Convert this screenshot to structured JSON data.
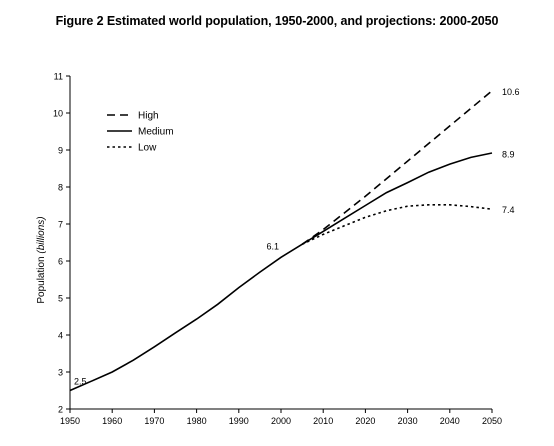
{
  "figure_title": "Figure 2 Estimated world population, 1950-2000,  and projections: 2000-2050",
  "chart_data": {
    "type": "line",
    "ylabel": "Population",
    "ylabel_unit": "(billions)",
    "xlabel": "",
    "xlim": [
      1950,
      2050
    ],
    "ylim": [
      2,
      11
    ],
    "x_ticks": [
      1950,
      1960,
      1970,
      1980,
      1990,
      2000,
      2010,
      2020,
      2030,
      2040,
      2050
    ],
    "y_ticks": [
      2,
      3,
      4,
      5,
      6,
      7,
      8,
      9,
      10,
      11
    ],
    "grid": false,
    "legend_position": "top-left",
    "historical": {
      "x": [
        1950,
        1955,
        1960,
        1965,
        1970,
        1975,
        1980,
        1985,
        1990,
        1995,
        2000,
        2005
      ],
      "y": [
        2.5,
        2.75,
        3.0,
        3.32,
        3.68,
        4.06,
        4.43,
        4.83,
        5.28,
        5.7,
        6.1,
        6.45
      ]
    },
    "series": [
      {
        "name": "High",
        "style": "dashed",
        "x": [
          2005,
          2010,
          2020,
          2030,
          2040,
          2050
        ],
        "y": [
          6.45,
          6.85,
          7.75,
          8.7,
          9.65,
          10.6
        ]
      },
      {
        "name": "Medium",
        "style": "solid",
        "x": [
          2005,
          2010,
          2015,
          2020,
          2025,
          2030,
          2035,
          2040,
          2045,
          2050
        ],
        "y": [
          6.45,
          6.8,
          7.15,
          7.5,
          7.85,
          8.12,
          8.4,
          8.62,
          8.8,
          8.92
        ]
      },
      {
        "name": "Low",
        "style": "dotted",
        "x": [
          2005,
          2010,
          2015,
          2020,
          2025,
          2030,
          2035,
          2040,
          2045,
          2050
        ],
        "y": [
          6.45,
          6.72,
          6.95,
          7.18,
          7.36,
          7.48,
          7.52,
          7.52,
          7.47,
          7.4
        ]
      }
    ],
    "annotations": [
      {
        "text": "2.5",
        "x": 1950,
        "y": 2.5
      },
      {
        "text": "6.1",
        "x": 2000,
        "y": 6.1
      },
      {
        "text": "10.6",
        "x": 2050,
        "y": 10.6
      },
      {
        "text": "8.9",
        "x": 2050,
        "y": 8.9
      },
      {
        "text": "7.4",
        "x": 2050,
        "y": 7.4
      }
    ]
  }
}
